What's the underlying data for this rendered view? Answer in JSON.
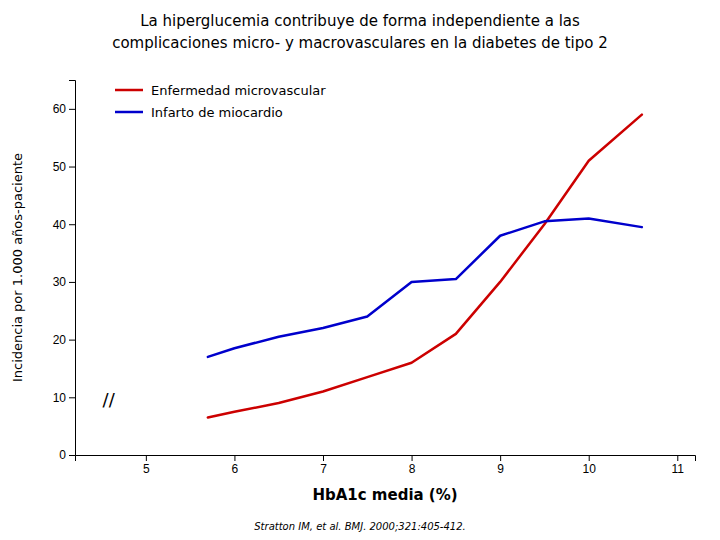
{
  "chart_data": {
    "type": "line",
    "title": [
      "La hiperglucemia contribuye de forma independiente a las",
      "complicaciones micro- y macrovasculares en la diabetes de tipo 2"
    ],
    "x_label": "HbA1c media (%)",
    "y_label": "Incidencia por 1.000 años-paciente",
    "x": [
      5.7,
      6.0,
      6.5,
      7.0,
      7.5,
      8.0,
      8.5,
      9.0,
      9.5,
      10.0,
      10.6
    ],
    "series": [
      {
        "name": "Enfermedad microvascular",
        "color": "#cc0000",
        "values": [
          6.5,
          7.5,
          9.0,
          11.0,
          13.5,
          16.0,
          21.0,
          30.0,
          40.0,
          51.0,
          59.0
        ]
      },
      {
        "name": "Infarto de miocardio",
        "color": "#0000cc",
        "values": [
          17.0,
          18.5,
          20.5,
          22.0,
          24.0,
          30.0,
          30.5,
          38.0,
          40.5,
          41.0,
          39.5
        ]
      }
    ],
    "xlim": [
      4.2,
      11.2
    ],
    "ylim": [
      0,
      65
    ],
    "xticks": [
      5,
      6,
      7,
      8,
      9,
      10,
      11
    ],
    "yticks": [
      0,
      10,
      20,
      30,
      40,
      50,
      60
    ],
    "grid": false,
    "legend": "upper left",
    "annotations": [
      {
        "text": "//",
        "x": 4.58,
        "y": 9.5
      },
      {
        "text": "Stratton IM, et al. BMJ. 2000;321:405-412."
      }
    ]
  }
}
